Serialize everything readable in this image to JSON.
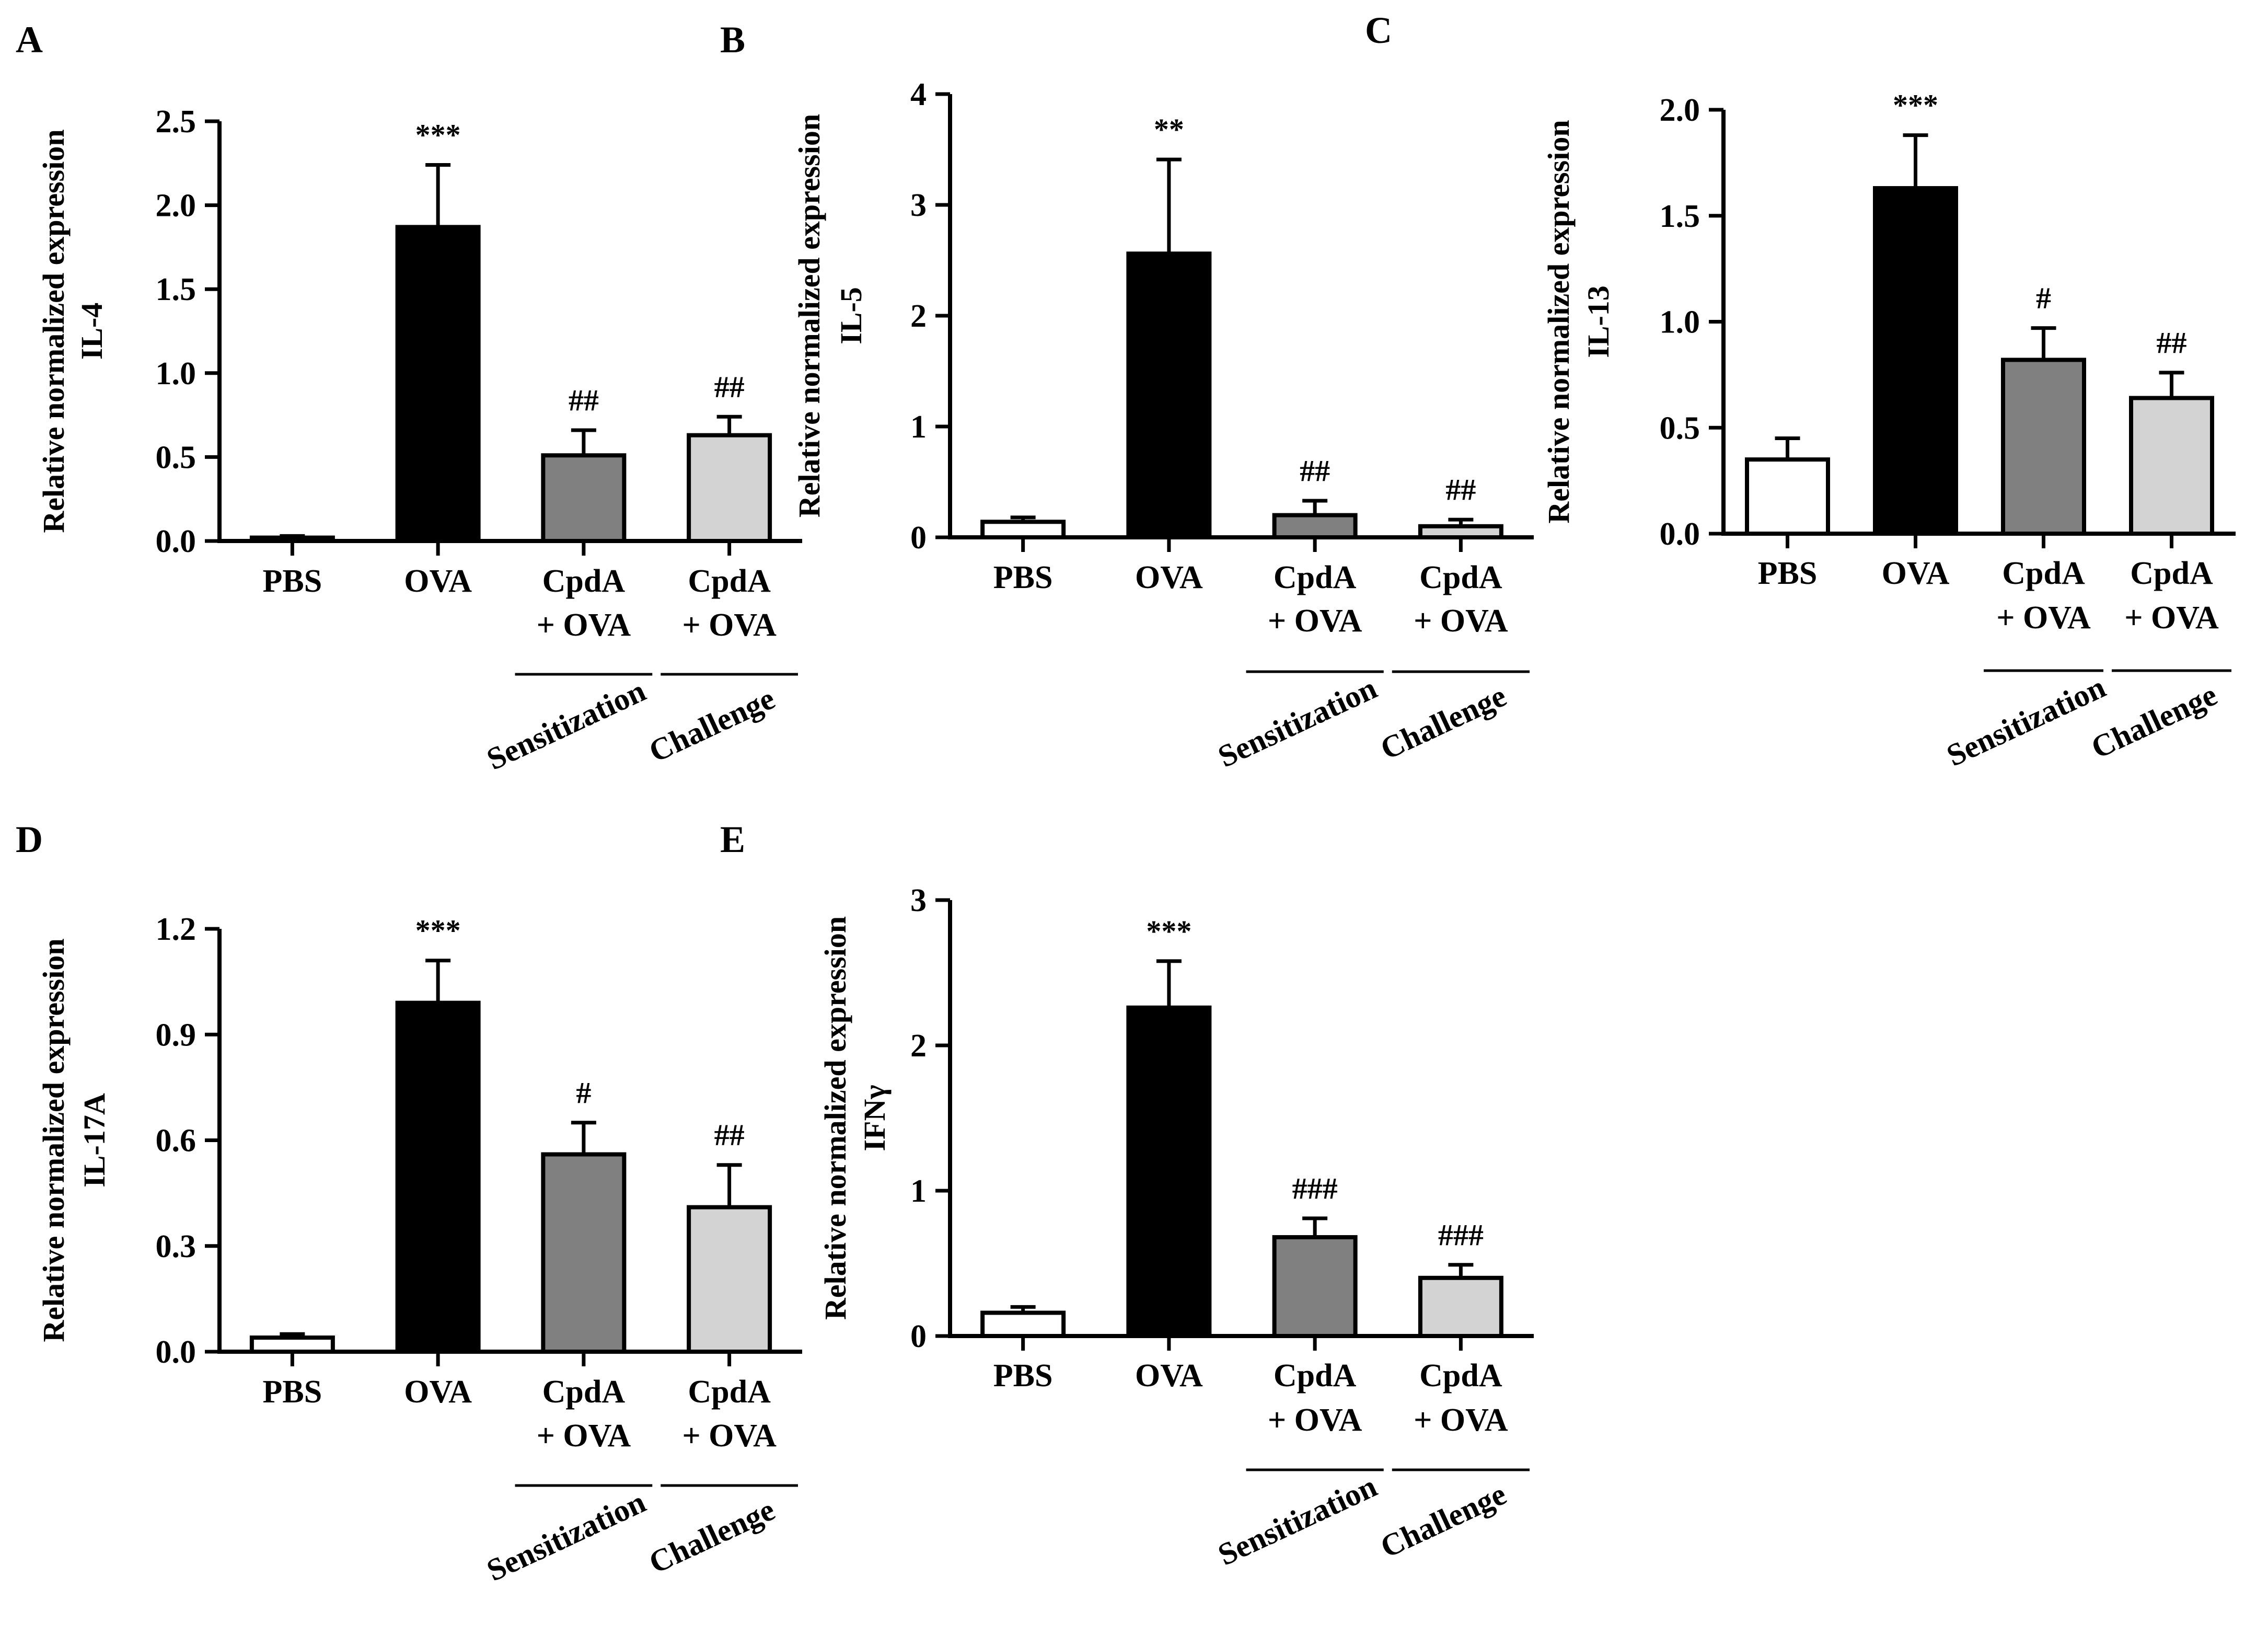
{
  "figure": {
    "colors": {
      "axis": "#000000",
      "PBS": "#ffffff",
      "OVA": "#000000",
      "CpdA_sens": "#808080",
      "CpdA_chal": "#d3d3d3"
    },
    "shared": {
      "ytitle_line1": "Relative normalized expression",
      "categories": [
        "PBS",
        "OVA",
        "CpdA\n+ OVA",
        "CpdA\n+ OVA"
      ],
      "group_labels": [
        "Sensitization",
        "Challenge"
      ]
    }
  },
  "chart_data": [
    {
      "panel": "A",
      "type": "bar",
      "title": "",
      "ylabel": "Relative normalized expression IL-4",
      "ylabel_gene": "IL-4",
      "categories": [
        "PBS",
        "OVA",
        "CpdA + OVA",
        "CpdA + OVA"
      ],
      "groups": [
        "Sensitization",
        "Challenge"
      ],
      "values": [
        0.02,
        1.87,
        0.51,
        0.63
      ],
      "errors": [
        0.01,
        0.37,
        0.15,
        0.11
      ],
      "significance": [
        "",
        "***",
        "##",
        "##"
      ],
      "ylim": [
        0,
        2.5
      ],
      "yticks": [
        "0.0",
        "0.5",
        "1.0",
        "1.5",
        "2.0",
        "2.5"
      ]
    },
    {
      "panel": "B",
      "type": "bar",
      "title": "",
      "ylabel": "Relative normalized expression IL-5",
      "ylabel_gene": "IL-5",
      "categories": [
        "PBS",
        "OVA",
        "CpdA + OVA",
        "CpdA + OVA"
      ],
      "groups": [
        "Sensitization",
        "Challenge"
      ],
      "values": [
        0.14,
        2.56,
        0.2,
        0.1
      ],
      "errors": [
        0.04,
        0.85,
        0.13,
        0.06
      ],
      "significance": [
        "",
        "**",
        "##",
        "##"
      ],
      "ylim": [
        0,
        4
      ],
      "yticks": [
        "0",
        "1",
        "2",
        "3",
        "4"
      ]
    },
    {
      "panel": "C",
      "type": "bar",
      "title": "",
      "ylabel": "Relative normalized expression IL-13",
      "ylabel_gene": "IL-13",
      "categories": [
        "PBS",
        "OVA",
        "CpdA + OVA",
        "CpdA + OVA"
      ],
      "groups": [
        "Sensitization",
        "Challenge"
      ],
      "values": [
        0.35,
        1.63,
        0.82,
        0.64
      ],
      "errors": [
        0.1,
        0.25,
        0.15,
        0.12
      ],
      "significance": [
        "",
        "***",
        "#",
        "##"
      ],
      "ylim": [
        0,
        2.0
      ],
      "yticks": [
        "0.0",
        "0.5",
        "1.0",
        "1.5",
        "2.0"
      ]
    },
    {
      "panel": "D",
      "type": "bar",
      "title": "",
      "ylabel": "Relative normalized expression IL-17A",
      "ylabel_gene": "IL-17A",
      "categories": [
        "PBS",
        "OVA",
        "CpdA + OVA",
        "CpdA + OVA"
      ],
      "groups": [
        "Sensitization",
        "Challenge"
      ],
      "values": [
        0.04,
        0.99,
        0.56,
        0.41
      ],
      "errors": [
        0.01,
        0.12,
        0.09,
        0.12
      ],
      "significance": [
        "",
        "***",
        "#",
        "##"
      ],
      "ylim": [
        0,
        1.2
      ],
      "yticks": [
        "0.0",
        "0.3",
        "0.6",
        "0.9",
        "1.2"
      ]
    },
    {
      "panel": "E",
      "type": "bar",
      "title": "",
      "ylabel": "Relative normalized expression IFNγ",
      "ylabel_gene": "IFNγ",
      "categories": [
        "PBS",
        "OVA",
        "CpdA + OVA",
        "CpdA + OVA"
      ],
      "groups": [
        "Sensitization",
        "Challenge"
      ],
      "values": [
        0.16,
        2.26,
        0.68,
        0.4
      ],
      "errors": [
        0.04,
        0.32,
        0.13,
        0.09
      ],
      "significance": [
        "",
        "***",
        "###",
        "###"
      ],
      "ylim": [
        0,
        3
      ],
      "yticks": [
        "0",
        "1",
        "2",
        "3"
      ]
    }
  ]
}
